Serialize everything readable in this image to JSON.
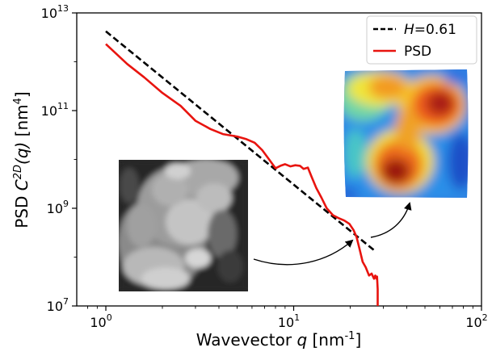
{
  "chart_data": {
    "type": "line",
    "xscale": "log",
    "yscale": "log",
    "xlim": [
      0.7,
      100
    ],
    "ylim": [
      10000000.0,
      10000000000000.0
    ],
    "xlabel": {
      "prefix": "Wavevector ",
      "var": "q",
      "suffix": " [nm",
      "exp": "-1",
      "close": "]"
    },
    "ylabel": {
      "prefix": "PSD ",
      "var": "C",
      "sup": "2D",
      "mid": "(q)",
      "suffix": " [nm",
      "exp": "4",
      "close": "]"
    },
    "x_ticks": [
      {
        "value": 1,
        "base": "10",
        "exp": "0"
      },
      {
        "value": 10,
        "base": "10",
        "exp": "1"
      },
      {
        "value": 100,
        "base": "10",
        "exp": "2"
      }
    ],
    "y_ticks": [
      {
        "value": 10000000.0,
        "base": "10",
        "exp": "7"
      },
      {
        "value": 1000000000.0,
        "base": "10",
        "exp": "9"
      },
      {
        "value": 100000000000.0,
        "base": "10",
        "exp": "11"
      },
      {
        "value": 10000000000000.0,
        "base": "10",
        "exp": "13"
      }
    ],
    "grid": false,
    "legend_position": "top-right",
    "series": [
      {
        "name": "H=0.61",
        "legend_var": "H",
        "legend_rest": "=0.61",
        "style": "dashed",
        "color": "#000000",
        "x": [
          1.0,
          27.0
        ],
        "y": [
          4200000000000.0,
          135000000.0
        ]
      },
      {
        "name": "PSD",
        "style": "solid",
        "color": "#e8140f",
        "x": [
          1.0,
          1.3,
          1.6,
          2.0,
          2.5,
          3.0,
          3.6,
          4.2,
          5.0,
          5.6,
          6.2,
          6.8,
          7.4,
          8.0,
          8.5,
          9.0,
          9.6,
          10.2,
          10.8,
          11.3,
          11.9,
          12.5,
          13.2,
          14.0,
          15.0,
          16.2,
          17.5,
          18.6,
          19.8,
          20.8,
          21.6,
          22.4,
          23.3,
          24.2,
          25.2,
          26.0,
          26.8,
          27.2,
          27.6,
          27.8,
          28.0,
          28.0
        ],
        "y": [
          2300000000000.0,
          900000000000.0,
          480000000000.0,
          230000000000.0,
          125000000000.0,
          62000000000.0,
          42000000000.0,
          33000000000.0,
          29500000000.0,
          26000000000.0,
          22000000000.0,
          15500000000.0,
          10000000000.0,
          6600000000.0,
          7400000000.0,
          8000000000.0,
          7200000000.0,
          7600000000.0,
          7400000000.0,
          6400000000.0,
          6800000000.0,
          4300000000.0,
          2600000000.0,
          1700000000.0,
          1000000000.0,
          720000000.0,
          620000000.0,
          560000000.0,
          480000000.0,
          360000000.0,
          260000000.0,
          150000000.0,
          80000000.0,
          62000000.0,
          42000000.0,
          46000000.0,
          36000000.0,
          42000000.0,
          36000000.0,
          40000000.0,
          22000000.0,
          10000000.0
        ]
      }
    ]
  },
  "insets": {
    "grayscale_image": "grayscale-microscopy-inset",
    "heatmap_image": "height-map-heatmap-inset",
    "arrow_color": "#000000"
  }
}
